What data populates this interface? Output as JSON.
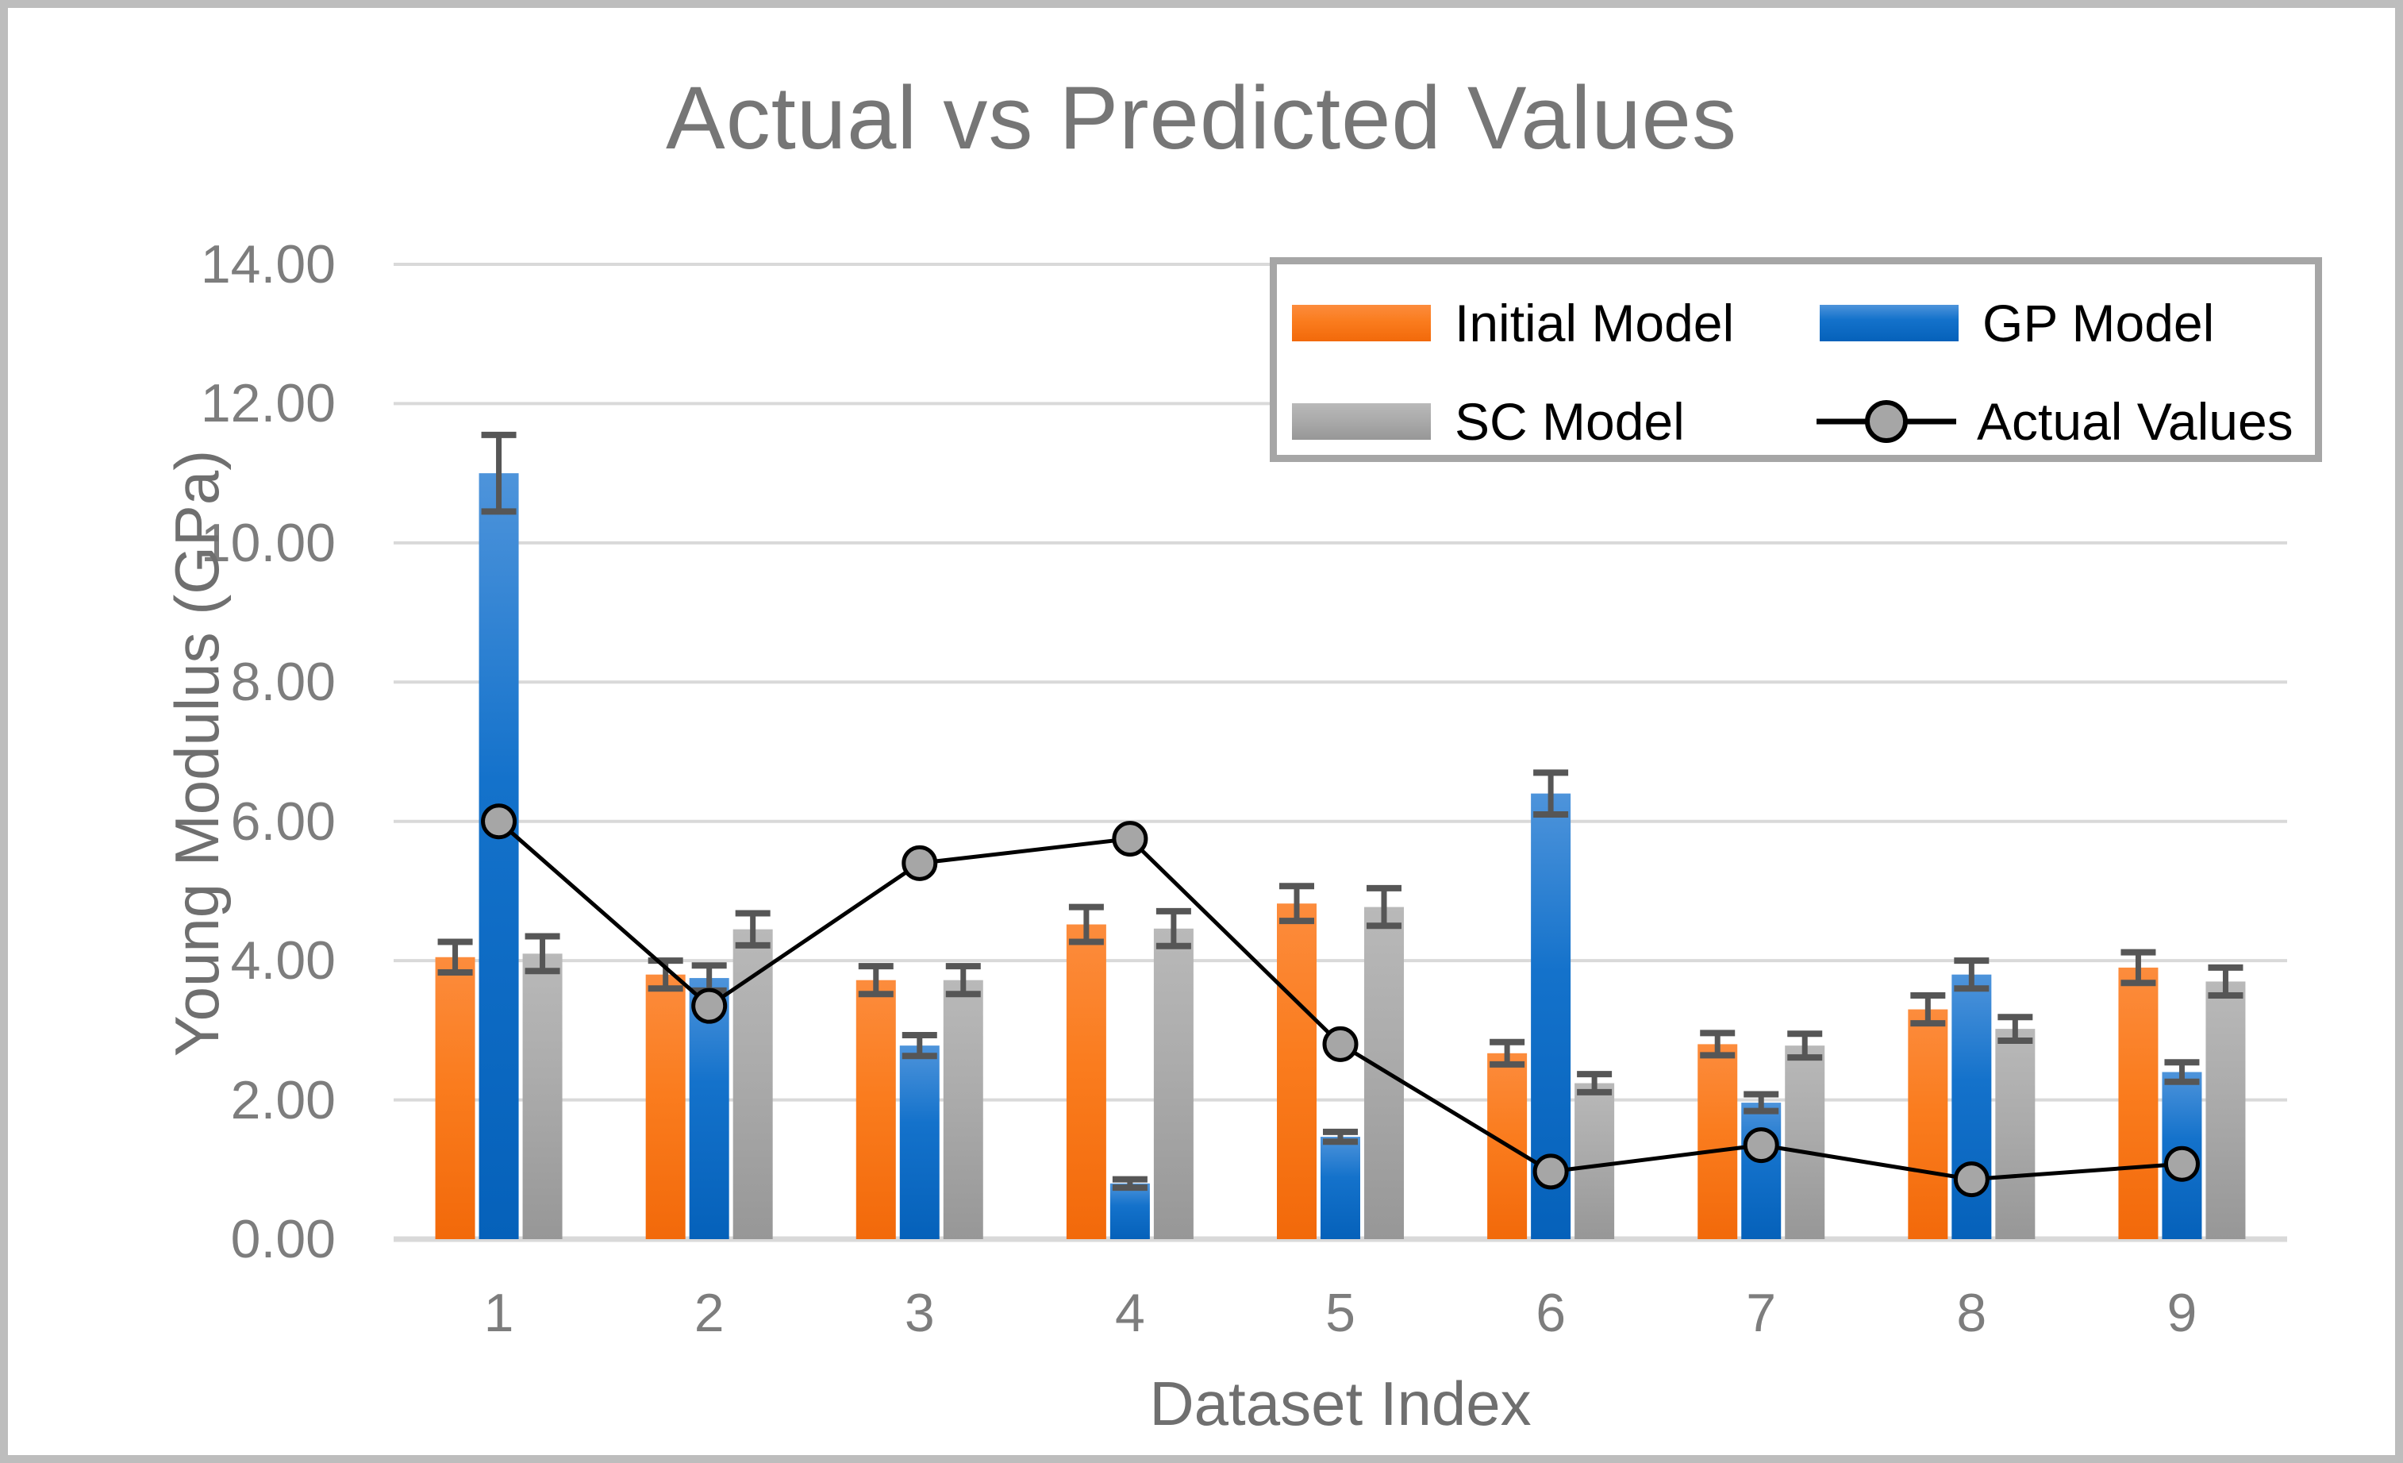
{
  "title": "Actual vs Predicted Values",
  "chart_data": {
    "type": "bar",
    "subtype": "grouped-bars-with-error-bars-and-line-overlay",
    "title": "Actual vs Predicted Values",
    "xlabel": "Dataset Index",
    "ylabel": "Young Modulus (GPa)",
    "ylim": [
      0,
      14
    ],
    "grid": true,
    "legend_position": "top-right-inside",
    "categories": [
      "1",
      "2",
      "3",
      "4",
      "5",
      "6",
      "7",
      "8",
      "9"
    ],
    "y_ticks": [
      "14.00",
      "12.00",
      "10.00",
      "8.00",
      "6.00",
      "4.00",
      "2.00",
      "0.00"
    ],
    "series": [
      {
        "name": "Initial Model",
        "type": "bar",
        "color": "#F97C1E",
        "values": [
          4.05,
          3.8,
          3.72,
          4.52,
          4.82,
          2.67,
          2.8,
          3.3,
          3.9
        ],
        "errors": [
          0.22,
          0.2,
          0.2,
          0.25,
          0.25,
          0.16,
          0.16,
          0.2,
          0.22
        ]
      },
      {
        "name": "GP Model",
        "type": "bar",
        "color": "#0B68C3",
        "values": [
          11.0,
          3.75,
          2.78,
          0.8,
          1.47,
          6.4,
          1.96,
          3.8,
          2.4
        ],
        "errors": [
          0.55,
          0.18,
          0.15,
          0.06,
          0.07,
          0.3,
          0.12,
          0.2,
          0.14
        ]
      },
      {
        "name": "SC Model",
        "type": "bar",
        "color": "#A6A6A6",
        "values": [
          4.1,
          4.45,
          3.72,
          4.46,
          4.77,
          2.24,
          2.78,
          3.02,
          3.7
        ],
        "errors": [
          0.25,
          0.23,
          0.2,
          0.25,
          0.27,
          0.13,
          0.17,
          0.17,
          0.2
        ]
      },
      {
        "name": "Actual Values",
        "type": "line",
        "color": "#000000",
        "marker": "circle",
        "marker_fill": "#A6A6A6",
        "values": [
          6.0,
          3.35,
          5.4,
          5.75,
          2.8,
          0.97,
          1.35,
          0.86,
          1.08
        ]
      }
    ],
    "error_bar_color": "#565656",
    "gridline_color": "#D9D9D9"
  },
  "legend": {
    "marker_icon": "line-circle-marker"
  }
}
